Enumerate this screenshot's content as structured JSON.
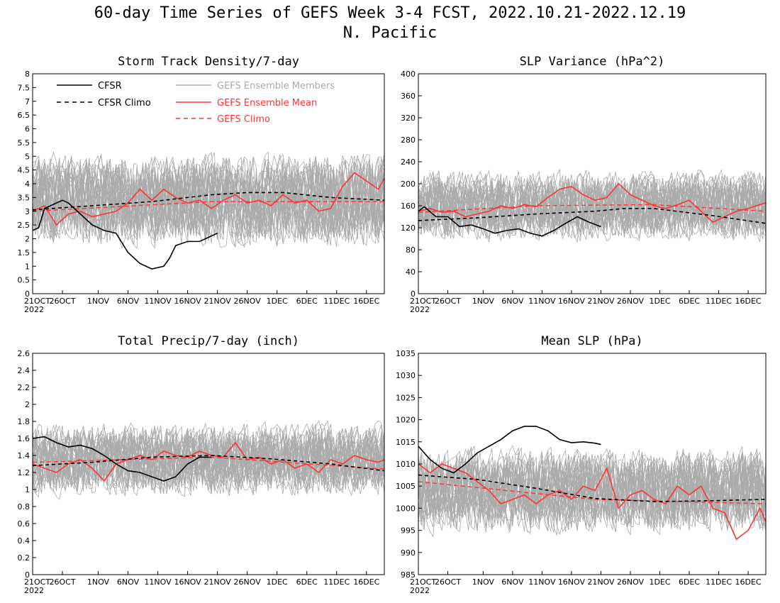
{
  "figure": {
    "title": "60-day Time Series of GEFS Week 3-4 FCST, 2022.10.21-2022.12.19",
    "subtitle": "N. Pacific"
  },
  "legend": {
    "cfsr": "CFSR",
    "cfsr_climo": "CFSR Climo",
    "members": "GEFS Ensemble Members",
    "mean": "GEFS Ensemble Mean",
    "gefs_climo": "GEFS Climo"
  },
  "colors": {
    "cfsr": "#000000",
    "members": "#aaaaaa",
    "mean": "#ff3333",
    "gefs_climo": "#ff3333"
  },
  "x_ticks": [
    "21OCT",
    "26OCT",
    "1NOV",
    "6NOV",
    "11NOV",
    "16NOV",
    "21NOV",
    "26NOV",
    "1DEC",
    "6DEC",
    "11DEC",
    "16DEC"
  ],
  "x_year": "2022",
  "chart_data": [
    {
      "type": "line",
      "title": "Storm Track Density/7-day",
      "ylim": [
        0,
        8
      ],
      "yticks": [
        "0",
        "0.5",
        "1",
        "1.5",
        "2",
        "2.5",
        "3",
        "3.5",
        "4",
        "4.5",
        "5",
        "5.5",
        "6",
        "6.5",
        "7",
        "7.5",
        "8"
      ],
      "x_days_range": [
        0,
        59
      ],
      "ensemble_spread": {
        "center": 3.4,
        "width": 1.6
      },
      "cfsr": {
        "x": [
          0,
          1,
          2,
          3,
          5,
          6,
          8,
          10,
          12,
          14,
          16,
          18,
          20,
          22,
          23,
          24,
          26,
          28,
          29,
          31
        ],
        "y": [
          2.3,
          2.4,
          3.1,
          3.2,
          3.4,
          3.3,
          2.9,
          2.5,
          2.3,
          2.2,
          1.5,
          1.1,
          0.9,
          1.0,
          1.3,
          1.75,
          1.9,
          1.9,
          2.0,
          2.2
        ]
      },
      "cfsr_climo": {
        "x": [
          0,
          10,
          20,
          30,
          36,
          42,
          50,
          59
        ],
        "y": [
          3.05,
          3.2,
          3.35,
          3.6,
          3.68,
          3.68,
          3.5,
          3.4
        ]
      },
      "gefs_mean": {
        "x": [
          0,
          2,
          4,
          6,
          8,
          10,
          12,
          14,
          16,
          18,
          20,
          22,
          24,
          26,
          28,
          30,
          32,
          34,
          36,
          38,
          40,
          42,
          44,
          46,
          48,
          50,
          52,
          54,
          56,
          58,
          59
        ],
        "y": [
          3.0,
          3.2,
          2.5,
          2.9,
          3.0,
          2.8,
          2.9,
          3.0,
          3.3,
          3.8,
          3.4,
          3.8,
          3.5,
          3.3,
          3.4,
          3.1,
          3.4,
          3.6,
          3.3,
          3.4,
          3.2,
          3.6,
          3.3,
          3.4,
          3.0,
          3.1,
          3.9,
          4.4,
          4.1,
          3.8,
          4.2
        ]
      },
      "gefs_climo": {
        "x": [
          0,
          30,
          59
        ],
        "y": [
          3.0,
          3.35,
          3.35
        ]
      }
    },
    {
      "type": "line",
      "title": "SLP Variance (hPa^2)",
      "ylim": [
        0,
        400
      ],
      "yticks": [
        "0",
        "40",
        "80",
        "120",
        "160",
        "200",
        "240",
        "280",
        "320",
        "360",
        "400"
      ],
      "x_days_range": [
        0,
        59
      ],
      "ensemble_spread": {
        "center": 160,
        "width": 60
      },
      "cfsr": {
        "x": [
          0,
          1,
          3,
          5,
          7,
          9,
          11,
          13,
          15,
          17,
          19,
          21,
          23,
          25,
          27,
          29,
          31
        ],
        "y": [
          150,
          158,
          140,
          140,
          122,
          125,
          118,
          110,
          115,
          118,
          110,
          105,
          115,
          128,
          140,
          130,
          122
        ]
      },
      "cfsr_climo": {
        "x": [
          0,
          10,
          20,
          30,
          35,
          40,
          50,
          59
        ],
        "y": [
          133,
          138,
          145,
          150,
          155,
          155,
          142,
          128
        ]
      },
      "gefs_mean": {
        "x": [
          0,
          2,
          4,
          6,
          8,
          10,
          12,
          14,
          16,
          18,
          20,
          22,
          24,
          26,
          28,
          30,
          32,
          34,
          36,
          38,
          40,
          42,
          44,
          46,
          48,
          50,
          52,
          54,
          56,
          58,
          59
        ],
        "y": [
          150,
          155,
          148,
          150,
          140,
          145,
          150,
          160,
          155,
          162,
          158,
          175,
          190,
          195,
          180,
          170,
          175,
          200,
          180,
          170,
          160,
          155,
          162,
          170,
          150,
          130,
          140,
          150,
          155,
          162,
          165
        ]
      },
      "gefs_climo": {
        "x": [
          0,
          20,
          40,
          59
        ],
        "y": [
          148,
          160,
          162,
          150
        ]
      }
    },
    {
      "type": "line",
      "title": "Total Precip/7-day (inch)",
      "ylim": [
        0,
        2.6
      ],
      "yticks": [
        "0",
        "0.2",
        "0.4",
        "0.6",
        "0.8",
        "1",
        "1.2",
        "1.4",
        "1.6",
        "1.8",
        "2",
        "2.2",
        "2.4",
        "2.6"
      ],
      "x_days_range": [
        0,
        59
      ],
      "ensemble_spread": {
        "center": 1.35,
        "width": 0.4
      },
      "cfsr": {
        "x": [
          0,
          2,
          4,
          6,
          8,
          10,
          12,
          14,
          16,
          18,
          20,
          22,
          24,
          26,
          28,
          30
        ],
        "y": [
          1.6,
          1.62,
          1.55,
          1.5,
          1.52,
          1.48,
          1.4,
          1.3,
          1.22,
          1.2,
          1.15,
          1.1,
          1.15,
          1.3,
          1.38,
          1.38
        ]
      },
      "cfsr_climo": {
        "x": [
          0,
          10,
          20,
          30,
          40,
          50,
          59
        ],
        "y": [
          1.28,
          1.32,
          1.38,
          1.4,
          1.36,
          1.3,
          1.22
        ]
      },
      "gefs_mean": {
        "x": [
          0,
          2,
          4,
          6,
          8,
          10,
          12,
          14,
          16,
          18,
          20,
          22,
          24,
          26,
          28,
          30,
          32,
          34,
          36,
          38,
          40,
          42,
          44,
          46,
          48,
          50,
          52,
          54,
          56,
          58,
          59
        ],
        "y": [
          1.3,
          1.25,
          1.2,
          1.3,
          1.35,
          1.25,
          1.1,
          1.3,
          1.35,
          1.4,
          1.35,
          1.45,
          1.4,
          1.38,
          1.45,
          1.4,
          1.38,
          1.55,
          1.35,
          1.38,
          1.3,
          1.35,
          1.25,
          1.3,
          1.2,
          1.35,
          1.3,
          1.4,
          1.35,
          1.32,
          1.35
        ]
      },
      "gefs_climo": {
        "x": [
          0,
          30,
          59
        ],
        "y": [
          1.32,
          1.38,
          1.24
        ]
      }
    },
    {
      "type": "line",
      "title": "Mean SLP (hPa)",
      "ylim": [
        985,
        1035
      ],
      "yticks": [
        "985",
        "990",
        "995",
        "1000",
        "1005",
        "1010",
        "1015",
        "1020",
        "1025",
        "1030",
        "1035"
      ],
      "x_days_range": [
        0,
        59
      ],
      "ensemble_spread": {
        "center": 1004,
        "width": 9
      },
      "cfsr": {
        "x": [
          0,
          2,
          4,
          6,
          8,
          10,
          12,
          14,
          16,
          18,
          20,
          22,
          24,
          26,
          28,
          30,
          31
        ],
        "y": [
          1014,
          1011,
          1009,
          1008,
          1010,
          1012.5,
          1014,
          1015.5,
          1017.5,
          1018.5,
          1018.5,
          1017.5,
          1015.5,
          1014.8,
          1015,
          1014.7,
          1014.4
        ]
      },
      "cfsr_climo": {
        "x": [
          0,
          10,
          20,
          30,
          40,
          50,
          59
        ],
        "y": [
          1007.5,
          1006.5,
          1004.5,
          1002.2,
          1001.5,
          1001.7,
          1002
        ]
      },
      "gefs_mean": {
        "x": [
          0,
          2,
          4,
          6,
          8,
          10,
          12,
          14,
          16,
          18,
          20,
          22,
          24,
          26,
          28,
          30,
          32,
          34,
          36,
          38,
          40,
          42,
          44,
          46,
          48,
          50,
          52,
          54,
          56,
          58,
          59
        ],
        "y": [
          1010,
          1008,
          1010,
          1009,
          1008,
          1006,
          1004,
          1001,
          1002,
          1003,
          1001,
          1003,
          1004,
          1002,
          1005,
          1004,
          1009,
          1000,
          1003,
          1004,
          1002,
          1001,
          1005,
          1003,
          1005,
          1000,
          999,
          993,
          995,
          1000,
          997
        ]
      },
      "gefs_climo": {
        "x": [
          0,
          30,
          59
        ],
        "y": [
          1006,
          1002,
          1001
        ]
      }
    }
  ]
}
